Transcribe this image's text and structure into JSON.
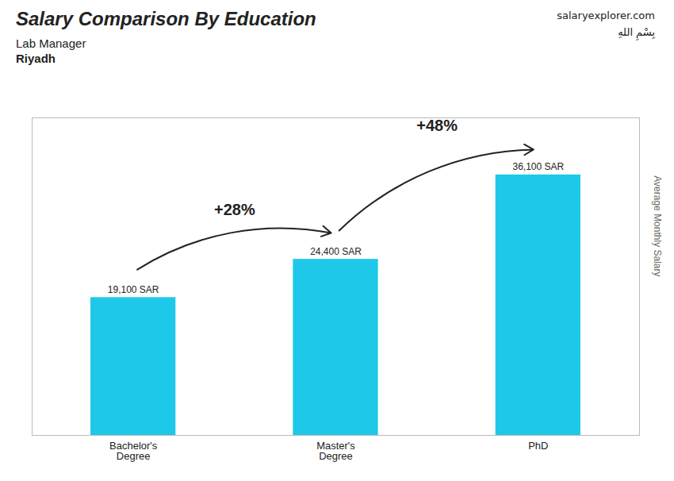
{
  "chart_data": {
    "type": "bar",
    "title": "Salary Comparison By Education",
    "subtitle": [
      "Lab Manager",
      "Riyadh"
    ],
    "ylabel": "Average Monthly Salary",
    "categories": [
      "Bachelor's\nDegree",
      "Master's\nDegree",
      "PhD"
    ],
    "values": [
      19100,
      24400,
      36100
    ],
    "value_labels": [
      "19,100 SAR",
      "24,400 SAR",
      "36,100 SAR"
    ],
    "data_labels": true,
    "color": "#1EC8E8",
    "ylim": [
      0,
      44000
    ],
    "tick_labels": "x",
    "grid": false,
    "annotations": [
      {
        "text": "+28%",
        "from": "Bachelor's\nDegree",
        "to": "Master's\nDegree"
      },
      {
        "text": "+48%",
        "from": "Master's\nDegree",
        "to": "PhD"
      },
      {
        "text": "salaryexplorer.com"
      },
      {
        "text": "بِسْمِ اللهِ"
      }
    ]
  }
}
